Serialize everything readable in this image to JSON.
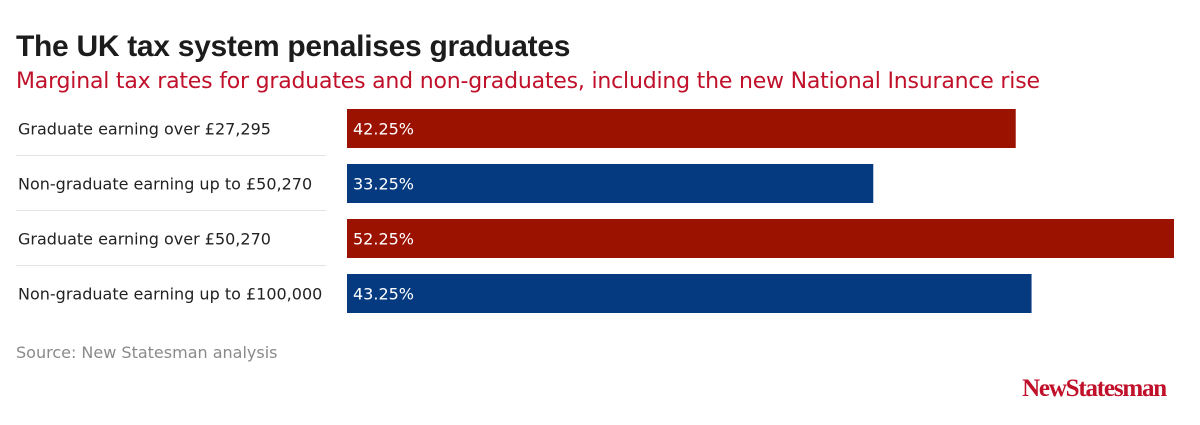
{
  "header": {
    "title": "The UK tax system penalises graduates",
    "subtitle": "Marginal tax rates for graduates and non-graduates, including the new National Insurance rise"
  },
  "footer": {
    "source": "Source: New Statesman analysis",
    "brand": "NewStatesman"
  },
  "colors": {
    "graduate": "#9b1201",
    "non_graduate": "#063a80",
    "title": "#1c1c1c",
    "subtitle": "#c0102a",
    "label_text": "#ffffff"
  },
  "chart_data": {
    "type": "bar",
    "orientation": "horizontal",
    "categories": [
      "Graduate earning over £27,295",
      "Non-graduate earning up to £50,270",
      "Graduate earning over £50,270",
      "Non-graduate earning up to £100,000"
    ],
    "values": [
      42.25,
      33.25,
      52.25,
      43.25
    ],
    "value_labels": [
      "42.25%",
      "33.25%",
      "52.25%",
      "43.25%"
    ],
    "bar_groups": [
      "graduate",
      "non_graduate",
      "graduate",
      "non_graduate"
    ],
    "xlim": [
      0,
      52.25
    ],
    "grid": false
  }
}
